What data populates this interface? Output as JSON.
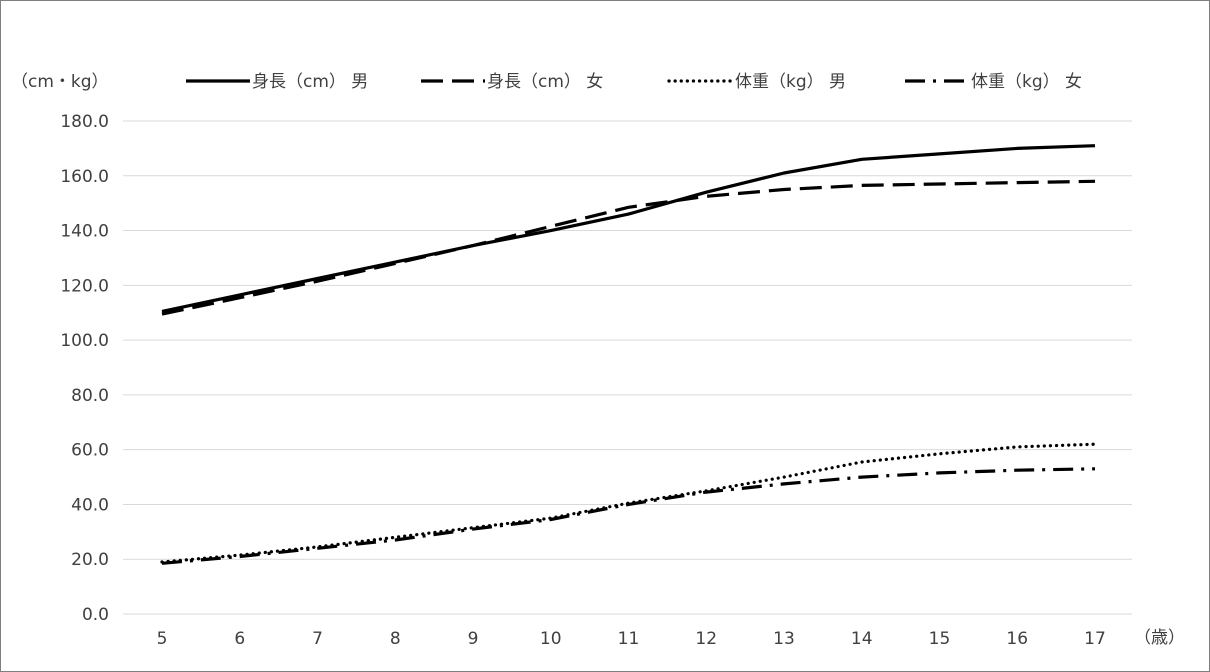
{
  "chart_data": {
    "type": "line",
    "y_unit_label": "（cm・kg）",
    "x_unit_label": "（歳）",
    "x": [
      5,
      6,
      7,
      8,
      9,
      10,
      11,
      12,
      13,
      14,
      15,
      16,
      17
    ],
    "categories": [
      "5",
      "6",
      "7",
      "8",
      "9",
      "10",
      "11",
      "12",
      "13",
      "14",
      "15",
      "16",
      "17"
    ],
    "ylim": [
      0,
      180
    ],
    "yticks": [
      "0.0",
      "20.0",
      "40.0",
      "60.0",
      "80.0",
      "100.0",
      "120.0",
      "140.0",
      "160.0",
      "180.0"
    ],
    "grid": true,
    "legend_position": "top",
    "series": [
      {
        "name": "身長（cm） 男",
        "style": "solid",
        "color": "#000000",
        "values": [
          110.5,
          116.5,
          122.5,
          128.5,
          134.5,
          140.0,
          146.0,
          154.0,
          161.0,
          166.0,
          168.0,
          170.0,
          171.0
        ]
      },
      {
        "name": "身長（cm） 女",
        "style": "dashed",
        "color": "#000000",
        "values": [
          109.5,
          115.5,
          121.5,
          128.0,
          134.5,
          141.5,
          148.5,
          152.5,
          155.0,
          156.5,
          157.0,
          157.5,
          158.0
        ]
      },
      {
        "name": "体重（kg） 男",
        "style": "dotted",
        "color": "#000000",
        "values": [
          19.0,
          21.5,
          24.5,
          28.0,
          31.5,
          35.0,
          40.5,
          45.0,
          50.0,
          55.5,
          58.5,
          61.0,
          62.0
        ]
      },
      {
        "name": "体重（kg） 女",
        "style": "dashdot",
        "color": "#000000",
        "values": [
          18.5,
          21.0,
          24.0,
          27.0,
          31.0,
          34.5,
          40.0,
          44.5,
          47.5,
          50.0,
          51.5,
          52.5,
          53.0
        ]
      }
    ]
  }
}
